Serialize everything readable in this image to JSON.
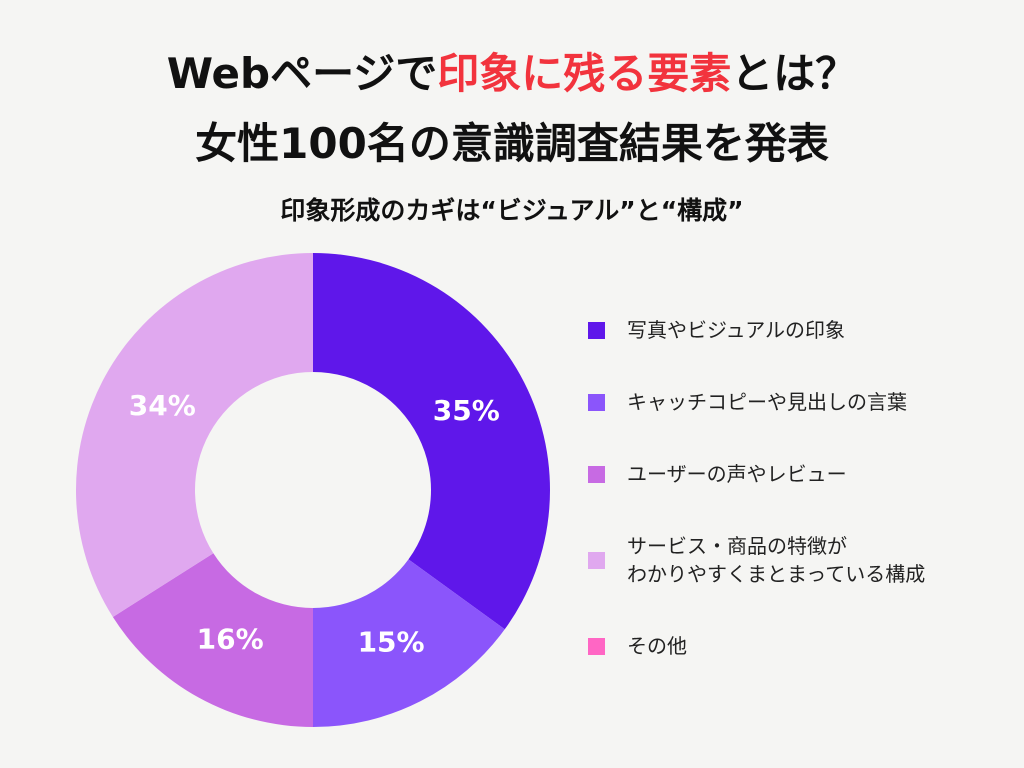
{
  "chart_data": {
    "type": "donut",
    "title_segments": [
      {
        "text": "Webページで",
        "color": "#111111"
      },
      {
        "text": "印象に残る要素",
        "color": "#f2333d"
      },
      {
        "text": "とは？",
        "color": "#111111"
      }
    ],
    "title_line2": "女性100名の意識調査結果を発表",
    "subtitle": "印象形成のカギは“ビジュアル”と“構成”",
    "categories": [
      "写真やビジュアルの印象",
      "キャッチコピーや見出しの言葉",
      "ユーザーの声やレビュー",
      "サービス・商品の特徴が\nわかりやすくまとまっている構成",
      "その他"
    ],
    "values": [
      35,
      15,
      16,
      34,
      0
    ],
    "value_labels": [
      "35%",
      "15%",
      "16%",
      "34%",
      null
    ],
    "colors": [
      "#5f17ea",
      "#8b55fb",
      "#c76ae3",
      "#e0a8ef",
      "#ff66c4"
    ],
    "legend": "right"
  }
}
